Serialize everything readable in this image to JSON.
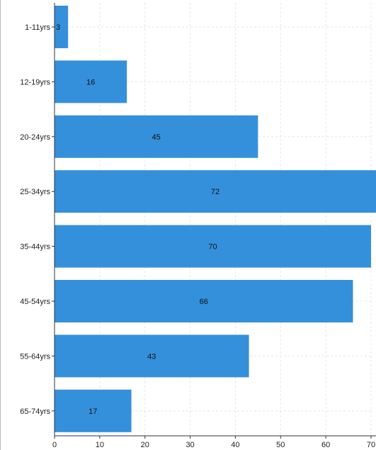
{
  "chart_data": {
    "type": "bar",
    "orientation": "horizontal",
    "categories": [
      "1-11yrs",
      "12-19yrs",
      "20-24yrs",
      "25-34yrs",
      "35-44yrs",
      "45-54yrs",
      "55-64yrs",
      "65-74yrs"
    ],
    "values": [
      3,
      16,
      45,
      72,
      70,
      66,
      43,
      17
    ],
    "data_labels": [
      "3",
      "16",
      "45",
      "72",
      "70",
      "66",
      "43",
      "17"
    ],
    "x_ticks": [
      "0",
      "10",
      "20",
      "30",
      "40",
      "50",
      "60",
      "70"
    ],
    "xlim": [
      0,
      70
    ],
    "grid": true,
    "bar_color": "#3590dc",
    "title": "",
    "xlabel": "",
    "ylabel": ""
  }
}
